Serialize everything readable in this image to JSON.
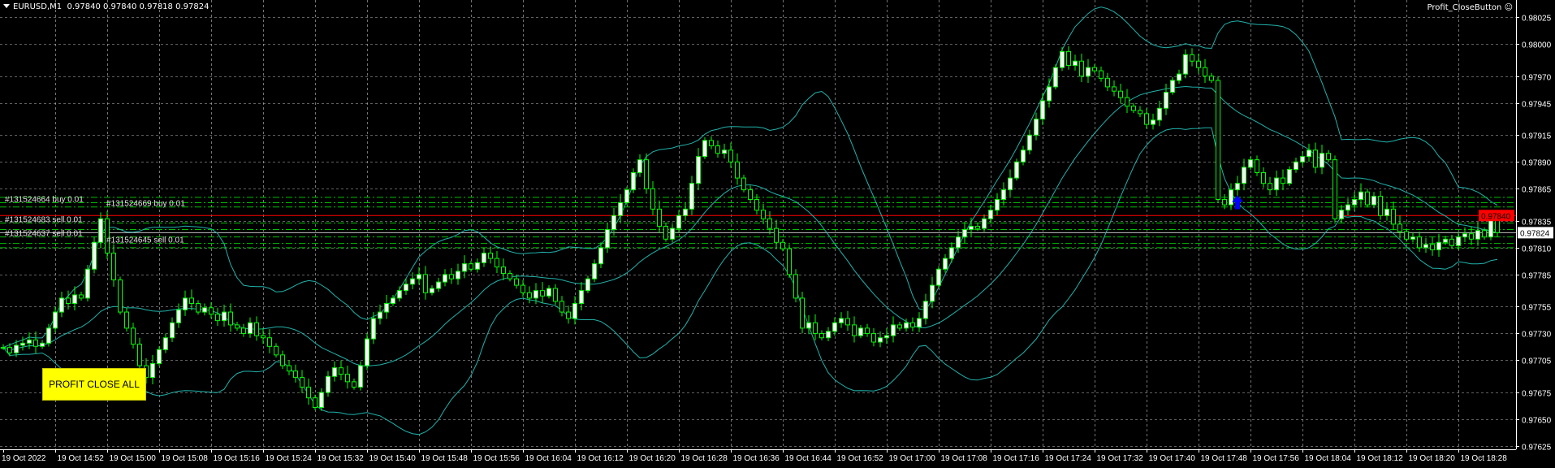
{
  "window": {
    "symbol_timeframe": "EURUSD,M1",
    "ohlc_readout": "0.97840 0.97840 0.97818 0.97824",
    "expert_label": "Profit_CloseButton",
    "expert_icon": "smiley-icon"
  },
  "profit_button": {
    "label": "PROFIT CLOSE ALL",
    "color": "#ffff00"
  },
  "colors": {
    "background": "#000000",
    "grid": "#c0c0c0",
    "candle_outline": "#00ff00",
    "bull_body": "#ffffff",
    "bear_body": "#000000",
    "bands": "#20b2aa",
    "ask_line": "#ff0000",
    "bid_line": "#c0c0c0",
    "order_lines": "#00c000",
    "buy_arrow": "#0000ff"
  },
  "chart_data": {
    "type": "candlestick",
    "symbol": "EURUSD",
    "timeframe": "M1",
    "date": "19 Oct 2022",
    "start_time": "14:44",
    "closes": [
      0.97717,
      0.97712,
      0.97719,
      0.97721,
      0.97724,
      0.97718,
      0.97721,
      0.97735,
      0.9775,
      0.97763,
      0.97758,
      0.97766,
      0.97763,
      0.9779,
      0.97815,
      0.97837,
      0.97805,
      0.9778,
      0.9775,
      0.97735,
      0.9772,
      0.977,
      0.97689,
      0.97702,
      0.97715,
      0.97726,
      0.9774,
      0.97752,
      0.97763,
      0.97758,
      0.9775,
      0.97754,
      0.97748,
      0.97742,
      0.9775,
      0.97738,
      0.97735,
      0.9773,
      0.9774,
      0.97728,
      0.97726,
      0.97718,
      0.9771,
      0.977,
      0.97695,
      0.97689,
      0.9768,
      0.9767,
      0.97661,
      0.97675,
      0.9769,
      0.97698,
      0.97692,
      0.97685,
      0.9768,
      0.977,
      0.97725,
      0.97744,
      0.9775,
      0.97758,
      0.97763,
      0.9777,
      0.97776,
      0.97781,
      0.97785,
      0.97768,
      0.97772,
      0.97778,
      0.97785,
      0.97781,
      0.97788,
      0.97795,
      0.9779,
      0.97796,
      0.97805,
      0.978,
      0.97792,
      0.97786,
      0.97781,
      0.97775,
      0.97768,
      0.97763,
      0.9777,
      0.97765,
      0.97772,
      0.9776,
      0.9775,
      0.97744,
      0.97758,
      0.9777,
      0.97781,
      0.97795,
      0.9781,
      0.97827,
      0.9784,
      0.97852,
      0.97864,
      0.9788,
      0.97892,
      0.97865,
      0.97846,
      0.9783,
      0.97818,
      0.97828,
      0.9784,
      0.97846,
      0.9787,
      0.97895,
      0.9791,
      0.97905,
      0.97898,
      0.97901,
      0.9789,
      0.97875,
      0.97864,
      0.97855,
      0.97845,
      0.97837,
      0.97828,
      0.97815,
      0.97809,
      0.97785,
      0.97763,
      0.97735,
      0.9774,
      0.9773,
      0.97726,
      0.97732,
      0.9774,
      0.97744,
      0.97738,
      0.97728,
      0.97735,
      0.9773,
      0.97722,
      0.97726,
      0.97728,
      0.97738,
      0.97735,
      0.9774,
      0.97736,
      0.97744,
      0.9776,
      0.97775,
      0.9779,
      0.978,
      0.9781,
      0.9782,
      0.97827,
      0.9783,
      0.97828,
      0.97837,
      0.97845,
      0.97855,
      0.97864,
      0.97875,
      0.9789,
      0.97901,
      0.97915,
      0.9793,
      0.97947,
      0.9796,
      0.97978,
      0.97993,
      0.9798,
      0.97984,
      0.9797,
      0.97978,
      0.97975,
      0.97968,
      0.9796,
      0.97956,
      0.9795,
      0.97942,
      0.97938,
      0.97935,
      0.97925,
      0.97929,
      0.9794,
      0.97955,
      0.97966,
      0.97972,
      0.9799,
      0.97984,
      0.97978,
      0.9797,
      0.97966,
      0.97855,
      0.9785,
      0.97864,
      0.9787,
      0.97885,
      0.97892,
      0.9788,
      0.9787,
      0.97864,
      0.97875,
      0.9787,
      0.97883,
      0.9789,
      0.97895,
      0.97901,
      0.97885,
      0.97898,
      0.97892,
      0.97837,
      0.97845,
      0.9785,
      0.97855,
      0.97862,
      0.9785,
      0.97858,
      0.9784,
      0.97846,
      0.97832,
      0.97825,
      0.97818,
      0.9782,
      0.9781,
      0.97813,
      0.97808,
      0.97815,
      0.97818,
      0.97812,
      0.9782,
      0.97823,
      0.97818,
      0.97826,
      0.9782,
      0.9784,
      0.97824
    ],
    "indicator": {
      "type": "Bollinger Bands",
      "period": 20,
      "deviation": 2
    },
    "ylim": [
      0.97622,
      0.98041
    ],
    "y_ticks": [
      "0.98025",
      "0.98000",
      "0.97970",
      "0.97945",
      "0.97915",
      "0.97890",
      "0.97865",
      "0.97835",
      "0.97810",
      "0.97785",
      "0.97755",
      "0.97730",
      "0.97705",
      "0.97675",
      "0.97650",
      "0.97625"
    ],
    "x_ticks": [
      "19 Oct 2022",
      "19 Oct 14:52",
      "19 Oct 15:00",
      "19 Oct 15:08",
      "19 Oct 15:16",
      "19 Oct 15:24",
      "19 Oct 15:32",
      "19 Oct 15:40",
      "19 Oct 15:48",
      "19 Oct 15:56",
      "19 Oct 16:04",
      "19 Oct 16:12",
      "19 Oct 16:20",
      "19 Oct 16:28",
      "19 Oct 16:36",
      "19 Oct 16:44",
      "19 Oct 16:52",
      "19 Oct 17:00",
      "19 Oct 17:08",
      "19 Oct 17:16",
      "19 Oct 17:24",
      "19 Oct 17:32",
      "19 Oct 17:40",
      "19 Oct 17:48",
      "19 Oct 17:56",
      "19 Oct 18:04",
      "19 Oct 18:12",
      "19 Oct 18:20",
      "19 Oct 18:28"
    ],
    "grid": true,
    "ask_price": {
      "value": 0.9784,
      "label": "0.97840"
    },
    "bid_price": {
      "value": 0.97824,
      "label": "0.97824"
    },
    "orders": [
      {
        "label": "#131524664 buy 0.01",
        "price": 0.97852
      },
      {
        "label": "#131524669 buy 0.01",
        "price": 0.97848
      },
      {
        "label": "#131524683 sell 0.01",
        "price": 0.97833
      },
      {
        "label": "#131524637 sell 0.01",
        "price": 0.9782
      },
      {
        "label": "#131524645 sell 0.01",
        "price": 0.97814
      }
    ],
    "extra_levels": [
      0.97857,
      0.97827,
      0.9781
    ],
    "buy_arrow": {
      "time": "17:54",
      "price": 0.97852
    }
  }
}
